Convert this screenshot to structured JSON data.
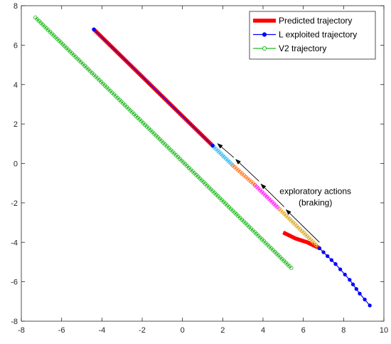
{
  "chart_data": {
    "type": "line",
    "title": "",
    "xlabel": "",
    "ylabel": "",
    "xlim": [
      -8,
      10
    ],
    "ylim": [
      -8,
      8
    ],
    "xticks": [
      -8,
      -6,
      -4,
      -2,
      0,
      2,
      4,
      6,
      8,
      10
    ],
    "yticks": [
      -8,
      -6,
      -4,
      -2,
      0,
      2,
      4,
      6,
      8
    ],
    "grid": false,
    "legend_position": "top-right",
    "legend": [
      {
        "label": "Predicted trajectory",
        "color": "#ff0000",
        "marker": "none"
      },
      {
        "label": "L exploited trajectory",
        "color": "#0000ff",
        "marker": "filled-circle"
      },
      {
        "label": "V2 trajectory",
        "color": "#22bb22",
        "marker": "open-circle"
      }
    ],
    "series": [
      {
        "name": "V2 trajectory",
        "color": "#22bb22",
        "marker": "open-circle",
        "x": [
          -7.3,
          5.4
        ],
        "y": [
          7.4,
          -5.3
        ]
      },
      {
        "name": "Predicted trajectory",
        "color": "#ff0000",
        "marker": "none",
        "segments": [
          {
            "x": [
              -4.4,
              1.5
            ],
            "y": [
              6.8,
              0.9
            ]
          },
          {
            "x": [
              5.0,
              5.6,
              6.2,
              6.8
            ],
            "y": [
              -3.5,
              -3.8,
              -4.0,
              -4.3
            ]
          }
        ]
      },
      {
        "name": "L exploited trajectory",
        "color": "#0000ff",
        "marker": "filled-circle",
        "segments": [
          {
            "x": [
              -4.4,
              1.5
            ],
            "y": [
              6.8,
              0.9
            ]
          },
          {
            "x": [
              6.8,
              7.6,
              8.3,
              8.8,
              9.3
            ],
            "y": [
              -4.3,
              -5.1,
              -5.9,
              -6.6,
              -7.2
            ]
          }
        ]
      },
      {
        "name": "exploratory actions",
        "marker": "open-circle",
        "segments": [
          {
            "x": [
              1.5,
              2.5
            ],
            "y": [
              0.9,
              -0.1
            ],
            "color": "#33bbee"
          },
          {
            "x": [
              2.5,
              3.6
            ],
            "y": [
              -0.1,
              -1.1
            ],
            "color": "#ff7722"
          },
          {
            "x": [
              3.6,
              4.8
            ],
            "y": [
              -1.1,
              -2.3
            ],
            "color": "#ff22ee"
          },
          {
            "x": [
              4.8,
              6.8
            ],
            "y": [
              -2.3,
              -4.3
            ],
            "color": "#ddaa22"
          }
        ]
      }
    ],
    "annotation": {
      "lines": [
        "exploratory actions",
        "(braking)"
      ],
      "x": 6.6,
      "y": -1.55,
      "arrows": [
        {
          "from": [
            6.8,
            -4.0
          ],
          "to": [
            5.15,
            -2.35
          ]
        },
        {
          "from": [
            5.05,
            -2.2
          ],
          "to": [
            3.9,
            -1.05
          ]
        },
        {
          "from": [
            3.8,
            -0.9
          ],
          "to": [
            2.65,
            0.2
          ]
        },
        {
          "from": [
            2.55,
            0.3
          ],
          "to": [
            1.75,
            1.0
          ]
        }
      ]
    }
  }
}
